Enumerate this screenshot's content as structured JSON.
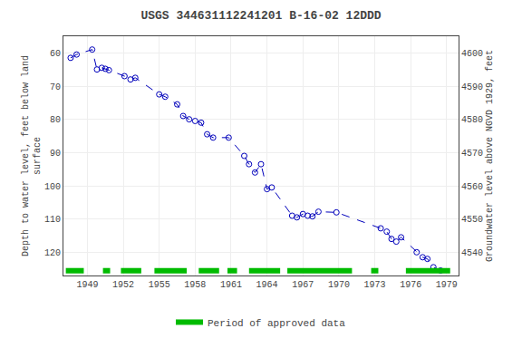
{
  "chart_data": {
    "type": "line",
    "title": "USGS 344631112241201 B-16-02 12DDD",
    "ylabel": "Depth to water level, feet below land\nsurface",
    "y2label": "Groundwater level above NGVD 1929, feet",
    "x": [
      1947.6,
      1948.1,
      1949.4,
      1949.8,
      1950.2,
      1950.5,
      1950.8,
      1952.1,
      1952.6,
      1953.0,
      1955.0,
      1955.5,
      1956.5,
      1957.0,
      1957.5,
      1958.0,
      1958.5,
      1959.0,
      1959.5,
      1960.8,
      1962.1,
      1962.5,
      1963.0,
      1963.5,
      1964.0,
      1964.4,
      1966.1,
      1966.5,
      1967.0,
      1967.4,
      1967.8,
      1968.3,
      1969.8,
      1973.5,
      1974.0,
      1974.4,
      1974.8,
      1975.2,
      1976.5,
      1977.0,
      1977.4,
      1977.9,
      1978.5
    ],
    "values": [
      61.5,
      60.5,
      59.0,
      65.0,
      64.5,
      64.8,
      65.2,
      67.0,
      68.0,
      67.5,
      72.5,
      73.2,
      75.5,
      79.0,
      80.0,
      80.5,
      81.0,
      84.5,
      85.5,
      85.5,
      91.0,
      93.5,
      96.0,
      93.5,
      101.0,
      100.5,
      109.0,
      109.5,
      108.5,
      109.0,
      109.2,
      107.8,
      108.0,
      112.8,
      113.8,
      116.0,
      116.8,
      115.5,
      120.0,
      121.5,
      122.0,
      124.5,
      125.5
    ],
    "color": "#0000bb",
    "line_style": "dashed",
    "marker": "circle-open",
    "xlim": [
      1947.0,
      1980.0
    ],
    "xticks": [
      1949,
      1952,
      1955,
      1958,
      1961,
      1964,
      1967,
      1970,
      1973,
      1976,
      1979
    ],
    "ylim": [
      127,
      55
    ],
    "yticks": [
      60,
      70,
      80,
      90,
      100,
      110,
      120
    ],
    "y2lim": [
      4533,
      4605
    ],
    "y2ticks": [
      4540,
      4550,
      4560,
      4570,
      4580,
      4590,
      4600
    ],
    "grid": true,
    "legend": "bottom",
    "periods": {
      "name": "Period of approved data",
      "color": "#00bb00",
      "ranges": [
        [
          1947.2,
          1948.7
        ],
        [
          1950.3,
          1950.9
        ],
        [
          1951.8,
          1953.5
        ],
        [
          1954.6,
          1957.3
        ],
        [
          1958.3,
          1960.0
        ],
        [
          1960.7,
          1961.5
        ],
        [
          1962.5,
          1965.1
        ],
        [
          1965.7,
          1971.1
        ],
        [
          1972.7,
          1973.3
        ],
        [
          1975.6,
          1979.3
        ]
      ]
    }
  }
}
